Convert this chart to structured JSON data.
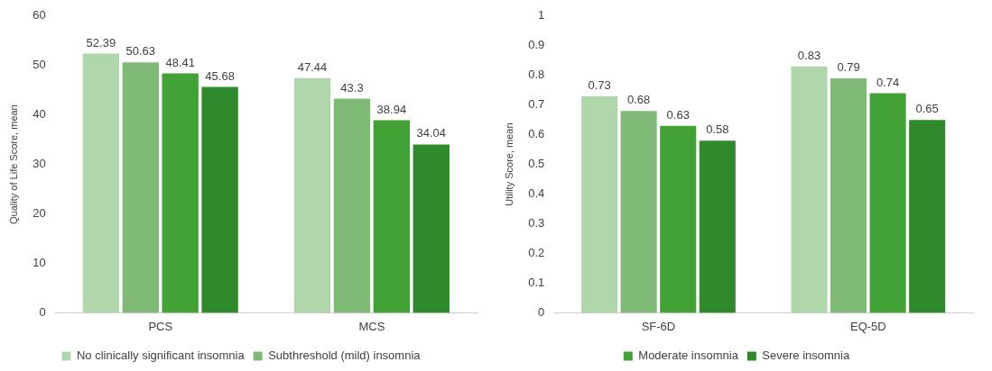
{
  "chart_data": [
    {
      "type": "bar",
      "ylabel": "Quality of Life Score, mean",
      "categories": [
        "PCS",
        "MCS"
      ],
      "ylim": [
        0,
        60
      ],
      "yticks": [
        0,
        10,
        20,
        30,
        40,
        50,
        60
      ],
      "grid": false,
      "legend": "bottom",
      "data_labels": true,
      "series": [
        {
          "name": "No clinically significant insomnia",
          "color": "#b0d6ac",
          "values": [
            52.39,
            47.44
          ]
        },
        {
          "name": "Subthreshold (mild) insomnia",
          "color": "#7fbb76",
          "values": [
            50.63,
            43.3
          ]
        },
        {
          "color": "#43a236",
          "values": [
            48.41,
            38.94
          ]
        },
        {
          "color": "#2e8a2a",
          "values": [
            45.68,
            34.04
          ]
        }
      ]
    },
    {
      "type": "bar",
      "ylabel": "Utility Score, mean",
      "categories": [
        "SF-6D",
        "EQ-5D"
      ],
      "ylim": [
        0,
        1
      ],
      "yticks": [
        0,
        0.1,
        0.2,
        0.3,
        0.4,
        0.5,
        0.6,
        0.7,
        0.8,
        0.9,
        1
      ],
      "grid": false,
      "legend": "bottom",
      "data_labels": true,
      "series": [
        {
          "color": "#b0d6ac",
          "values": [
            0.73,
            0.83
          ]
        },
        {
          "color": "#7fbb76",
          "values": [
            0.68,
            0.79
          ]
        },
        {
          "name": "Moderate insomnia",
          "color": "#43a236",
          "values": [
            0.63,
            0.74
          ]
        },
        {
          "name": "Severe insomnia",
          "color": "#2e8a2a",
          "values": [
            0.58,
            0.65
          ]
        }
      ]
    }
  ]
}
